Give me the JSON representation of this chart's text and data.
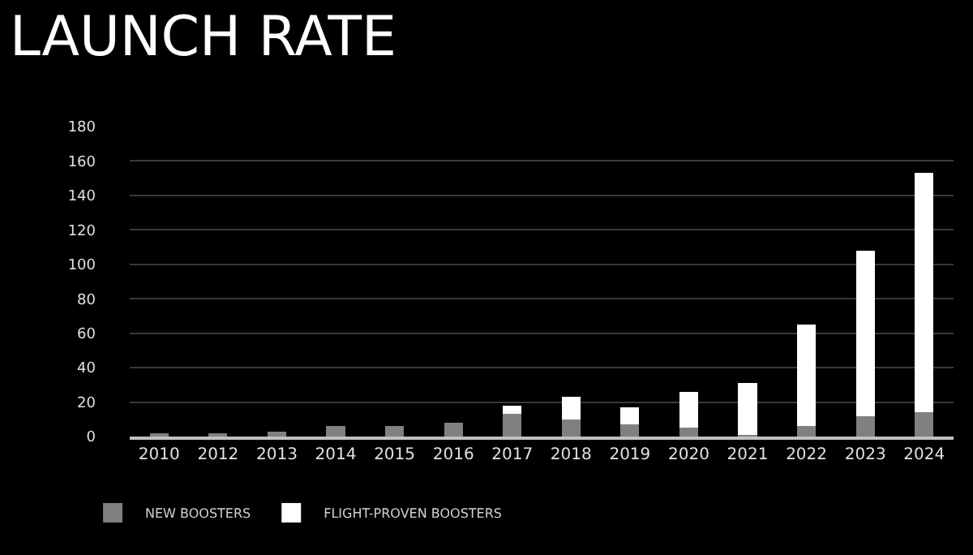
{
  "chart_data": {
    "type": "bar",
    "title": "LAUNCH RATE",
    "stacked": true,
    "categories": [
      "2010",
      "2012",
      "2013",
      "2014",
      "2015",
      "2016",
      "2017",
      "2018",
      "2019",
      "2020",
      "2021",
      "2022",
      "2023",
      "2024"
    ],
    "series": [
      {
        "name": "NEW BOOSTERS",
        "color": "#808080",
        "values": [
          2,
          2,
          3,
          6,
          6,
          8,
          13,
          10,
          7,
          5,
          1,
          6,
          12,
          14
        ]
      },
      {
        "name": "FLIGHT-PROVEN BOOSTERS",
        "color": "#ffffff",
        "values": [
          0,
          0,
          0,
          0,
          0,
          0,
          5,
          13,
          10,
          21,
          30,
          59,
          96,
          139
        ]
      }
    ],
    "ylim": [
      0,
      180
    ],
    "yticks": [
      0,
      20,
      40,
      60,
      80,
      100,
      120,
      140,
      160,
      180
    ],
    "grid": "y",
    "legend": "bottom left"
  }
}
